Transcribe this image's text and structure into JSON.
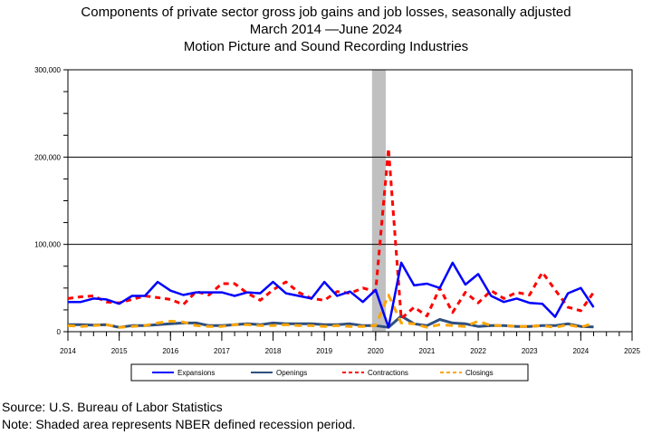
{
  "chart_data": {
    "type": "line",
    "title": "Components of private sector gross job gains and job losses, seasonally adjusted",
    "subtitle": "March 2014 —June 2024",
    "subtitle2": "Motion Picture and Sound Recording Industries",
    "x_start": 2014.0,
    "x_step": 0.25,
    "xlim": [
      2014,
      2025
    ],
    "ylim": [
      0,
      300000
    ],
    "x_ticks": [
      "2014",
      "2015",
      "2016",
      "2017",
      "2018",
      "2019",
      "2020",
      "2021",
      "2022",
      "2023",
      "2024",
      "2025"
    ],
    "y_ticks": [
      "0",
      "100,000",
      "200,000",
      "300,000"
    ],
    "recession": [
      2020.0,
      2020.25
    ],
    "legend_position": "bottom",
    "series": [
      {
        "name": "Expansions",
        "color": "#0000ff",
        "dash": "",
        "values": [
          34000,
          34000,
          38000,
          37000,
          32000,
          41000,
          41000,
          57000,
          47000,
          42000,
          45000,
          45000,
          45000,
          41000,
          45000,
          44000,
          57000,
          44000,
          41000,
          38000,
          57000,
          41000,
          46000,
          34000,
          48000,
          5000,
          79000,
          53000,
          55000,
          50000,
          79000,
          54000,
          66000,
          41000,
          34000,
          38000,
          33000,
          32000,
          17000,
          44000,
          50000,
          28000
        ]
      },
      {
        "name": "Openings",
        "color": "#2f4f7f",
        "dash": "",
        "values": [
          8000,
          8000,
          7500,
          8000,
          5000,
          7000,
          7000,
          8000,
          9000,
          10000,
          10000,
          7000,
          7000,
          8000,
          9000,
          8000,
          10000,
          9000,
          9000,
          9000,
          8000,
          8000,
          9000,
          7000,
          7000,
          5000,
          18000,
          9000,
          7000,
          14000,
          10000,
          9000,
          6000,
          7000,
          7000,
          6000,
          6000,
          7000,
          7000,
          9000,
          6000,
          5500
        ]
      },
      {
        "name": "Contractions",
        "color": "#ff0000",
        "dash": "6,5",
        "values": [
          38000,
          40000,
          41000,
          34000,
          33000,
          37000,
          41000,
          39000,
          37000,
          31000,
          46000,
          42000,
          55000,
          55000,
          44000,
          36000,
          48000,
          57000,
          45000,
          38000,
          36000,
          46000,
          44000,
          50000,
          46000,
          210000,
          15000,
          28000,
          18000,
          50000,
          22000,
          45000,
          33000,
          47000,
          38000,
          45000,
          42000,
          68000,
          48000,
          28000,
          24000,
          45000
        ]
      },
      {
        "name": "Closings",
        "color": "#ffa500",
        "dash": "8,6",
        "values": [
          7000,
          6000,
          7000,
          8000,
          5000,
          6000,
          7000,
          10000,
          12000,
          11000,
          7000,
          6000,
          6000,
          8000,
          8000,
          7000,
          7000,
          8000,
          7000,
          7000,
          6000,
          7000,
          6000,
          6000,
          7000,
          42000,
          10000,
          9000,
          5000,
          8000,
          7000,
          6000,
          12000,
          7000,
          7000,
          6000,
          6000,
          7000,
          5000,
          8000,
          5000,
          10000
        ]
      }
    ]
  },
  "footer": {
    "source": "Source: U.S. Bureau of Labor Statistics",
    "note": "Note: Shaded area represents NBER defined recession period."
  }
}
